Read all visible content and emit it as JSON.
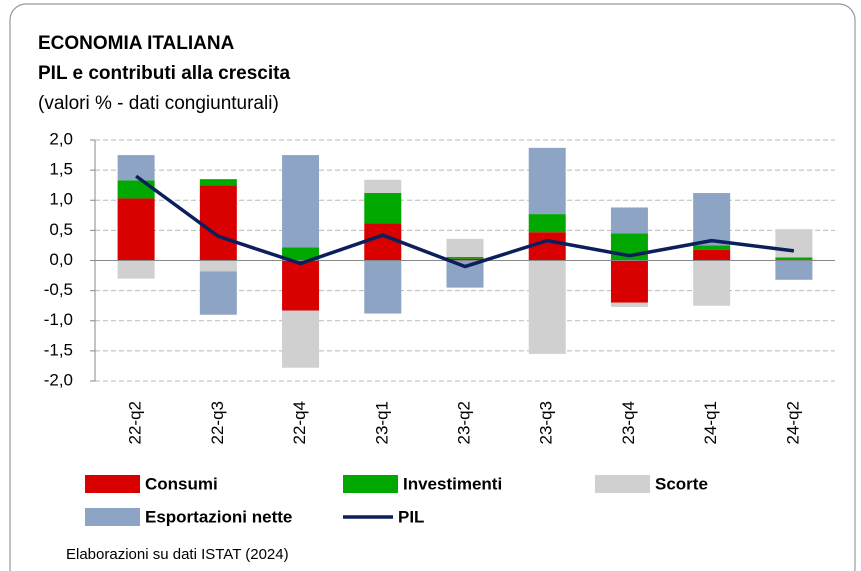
{
  "chart_data": {
    "type": "stacked-bar-line",
    "title": "ECONOMIA ITALIANA",
    "subtitle": "PIL e contributi  alla crescita",
    "y_label": "(valori % - dati congiunturali)",
    "source": "Elaborazioni su dati ISTAT (2024)",
    "categories": [
      "22-q2",
      "22-q3",
      "22-q4",
      "23-q1",
      "23-q2",
      "23-q3",
      "23-q4",
      "24-q1",
      "24-q2"
    ],
    "series": [
      {
        "name": "Consumi",
        "color": "#d90000",
        "values": [
          1.03,
          1.25,
          -0.83,
          0.62,
          0.03,
          0.47,
          -0.7,
          0.18,
          0.0
        ]
      },
      {
        "name": "Investimenti",
        "color": "#00a800",
        "values": [
          0.3,
          0.1,
          0.22,
          0.5,
          0.03,
          0.3,
          0.45,
          0.07,
          0.05
        ]
      },
      {
        "name": "Scorte",
        "color": "#d0d0d0",
        "values": [
          -0.3,
          -0.18,
          -0.95,
          0.22,
          0.3,
          -1.55,
          -0.07,
          -0.75,
          0.47
        ]
      },
      {
        "name": "Esportazioni nette",
        "color": "#8ea4c4",
        "values": [
          0.42,
          -0.72,
          1.53,
          -0.88,
          -0.45,
          1.1,
          0.43,
          0.87,
          -0.32
        ]
      },
      {
        "name": "PIL",
        "color": "#0c1e5c",
        "type": "line",
        "values": [
          1.4,
          0.4,
          -0.05,
          0.42,
          -0.1,
          0.33,
          0.08,
          0.33,
          0.16
        ]
      }
    ],
    "ylim": [
      -2,
      2
    ],
    "yticks": [
      {
        "value": 2,
        "label": "2,0"
      },
      {
        "value": 1.5,
        "label": "1,5"
      },
      {
        "value": 1,
        "label": "1,0"
      },
      {
        "value": 0.5,
        "label": "0,5"
      },
      {
        "value": 0,
        "label": "0,0"
      },
      {
        "value": -0.5,
        "label": "-0,5"
      },
      {
        "value": -1,
        "label": "-1,0"
      },
      {
        "value": -1.5,
        "label": "-1,5"
      },
      {
        "value": -2,
        "label": "-2,0"
      }
    ],
    "grid": true
  }
}
